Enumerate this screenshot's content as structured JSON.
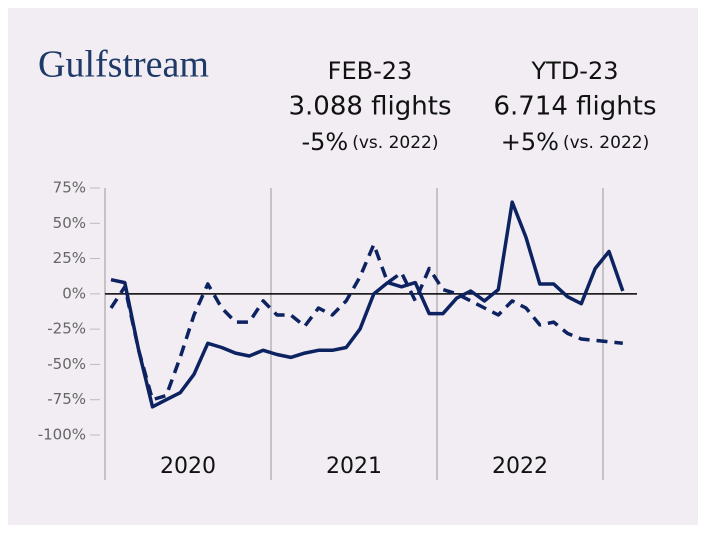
{
  "chart_data": {
    "type": "line",
    "brand": "Gulfstream",
    "kpis": [
      {
        "period": "FEB-23",
        "value": "3.088 flights",
        "change": "-5%",
        "note": "(vs. 2022)"
      },
      {
        "period": "YTD-23",
        "value": "6.714 flights",
        "change": "+5%",
        "note": "(vs. 2022)"
      }
    ],
    "year_labels": [
      "2020",
      "2021",
      "2022"
    ],
    "series": [
      {
        "color": "#0d2260",
        "dash": false,
        "values": [
          10,
          8,
          -40,
          -80,
          -75,
          -70,
          -57,
          -35,
          -38,
          -42,
          -44,
          -40,
          -43,
          -45,
          -42,
          -40,
          -40,
          -38,
          -25,
          0,
          8,
          5,
          8,
          -14,
          -14,
          -3,
          2,
          -5,
          3,
          65,
          40,
          7,
          7,
          -2,
          -7,
          18,
          30,
          2
        ]
      },
      {
        "color": "#0d2260",
        "dash": true,
        "values": [
          -10,
          5,
          -40,
          -75,
          -72,
          -45,
          -15,
          7,
          -10,
          -20,
          -20,
          -5,
          -15,
          -15,
          -23,
          -10,
          -15,
          -5,
          12,
          35,
          8,
          15,
          -5,
          18,
          3,
          0,
          -5,
          -10,
          -15,
          -5,
          -10,
          -22,
          -20,
          -28,
          -32,
          -33,
          -34,
          -35
        ]
      }
    ],
    "ylim": [
      -100,
      75
    ],
    "yticks": [
      {
        "value": 75,
        "label": "75%"
      },
      {
        "value": 50,
        "label": "50%"
      },
      {
        "value": 25,
        "label": "25%"
      },
      {
        "value": 0,
        "label": "0%"
      },
      {
        "value": -25,
        "label": "-25%"
      },
      {
        "value": -50,
        "label": "-50%"
      },
      {
        "value": -75,
        "label": "-75%"
      },
      {
        "value": -100,
        "label": "-100%"
      }
    ]
  }
}
